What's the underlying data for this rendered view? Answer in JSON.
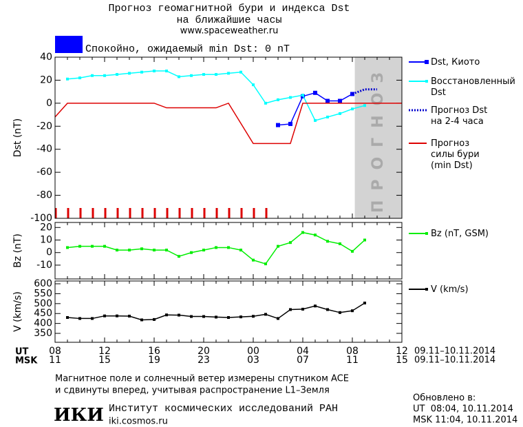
{
  "header": {
    "title": "Прогноз геомагнитной бури и индекса Dst",
    "subtitle": "на ближайшие часы",
    "site": "www.spaceweather.ru"
  },
  "status": {
    "color": "#0000ff",
    "text": "Спокойно, ожидаемый min Dst: 0 nT"
  },
  "time_axis": {
    "xlim": [
      0,
      28
    ],
    "ut_label": "UT",
    "ut_ticks": [
      {
        "value": 0,
        "label": "08"
      },
      {
        "value": 4,
        "label": "12"
      },
      {
        "value": 8,
        "label": "16"
      },
      {
        "value": 12,
        "label": "20"
      },
      {
        "value": 16,
        "label": "00"
      },
      {
        "value": 20,
        "label": "04"
      },
      {
        "value": 24,
        "label": "08"
      },
      {
        "value": 28,
        "label": "12"
      }
    ],
    "ut_range": "09.11–10.11.2014",
    "msk_label": "MSK",
    "msk_ticks": [
      {
        "value": 0,
        "label": "11"
      },
      {
        "value": 4,
        "label": "15"
      },
      {
        "value": 8,
        "label": "19"
      },
      {
        "value": 12,
        "label": "23"
      },
      {
        "value": 16,
        "label": "03"
      },
      {
        "value": 20,
        "label": "07"
      },
      {
        "value": 24,
        "label": "11"
      },
      {
        "value": 28,
        "label": "15"
      }
    ],
    "msk_range": "09.11–10.11.2014"
  },
  "chart_data": [
    {
      "type": "line",
      "ylabel": "Dst (nT)",
      "ylim": [
        -100,
        40
      ],
      "yticks": [
        -100,
        -80,
        -60,
        -40,
        -20,
        0,
        20,
        40
      ],
      "forecast_zone": {
        "label": "ПРОГНОЗ",
        "from": 24.2,
        "to": 28,
        "color": "#d3d3d3"
      },
      "series": [
        {
          "name": "Dst, Киото",
          "color": "#0000ff",
          "style": "solid-marker",
          "x": [
            18,
            19,
            20,
            21,
            22,
            23,
            24
          ],
          "values": [
            -19,
            -18,
            6,
            9,
            2,
            2,
            8
          ]
        },
        {
          "name": "Восстановленный\nDst",
          "color": "#00ffff",
          "style": "solid-small-marker",
          "x": [
            1,
            2,
            3,
            4,
            5,
            6,
            7,
            8,
            9,
            10,
            11,
            12,
            13,
            14,
            15,
            16,
            17,
            18,
            19,
            20,
            21,
            22,
            23,
            24,
            25
          ],
          "values": [
            21,
            22,
            24,
            24,
            25,
            26,
            27,
            28,
            28,
            23,
            24,
            25,
            25,
            26,
            27,
            16,
            0,
            3,
            5,
            7,
            -15,
            -12,
            -9,
            -5,
            -2
          ]
        },
        {
          "name": "Прогноз Dst\nна 2-4 часа",
          "color": "#0000cc",
          "style": "dotted",
          "x": [
            24,
            25,
            26
          ],
          "values": [
            8,
            12,
            12
          ]
        },
        {
          "name": "Прогноз\nсилы бури\n(min Dst)",
          "color": "#dd0000",
          "style": "solid",
          "x": [
            0,
            1,
            8,
            9,
            13,
            14,
            16,
            19,
            20,
            28
          ],
          "values": [
            -12,
            0,
            0,
            -4,
            -4,
            0,
            -35,
            -35,
            0,
            0
          ]
        }
      ]
    },
    {
      "type": "line",
      "ylabel": "Bz (nT)",
      "ylim": [
        -21,
        24
      ],
      "yticks": [
        -10,
        0,
        10,
        20
      ],
      "series": [
        {
          "name": "Bz (nT, GSM)",
          "color": "#00ee00",
          "style": "solid-small-marker",
          "x": [
            1,
            2,
            3,
            4,
            5,
            6,
            7,
            8,
            9,
            10,
            11,
            12,
            13,
            14,
            15,
            16,
            17,
            18,
            19,
            20,
            21,
            22,
            23,
            24,
            25
          ],
          "values": [
            4,
            5,
            5,
            5,
            2,
            2,
            3,
            2,
            2,
            -3,
            0,
            2,
            4,
            4,
            2,
            -6,
            -9,
            5,
            8,
            16,
            14,
            9,
            7,
            1,
            10
          ]
        }
      ]
    },
    {
      "type": "line",
      "ylabel": "V (km/s)",
      "ylim": [
        305,
        614
      ],
      "yticks": [
        350,
        400,
        450,
        500,
        550,
        600
      ],
      "series": [
        {
          "name": "V (km/s)",
          "color": "#000000",
          "style": "solid-small-marker",
          "x": [
            1,
            2,
            3,
            4,
            5,
            6,
            7,
            8,
            9,
            10,
            11,
            12,
            13,
            14,
            15,
            16,
            17,
            18,
            19,
            20,
            21,
            22,
            23,
            24,
            25
          ],
          "values": [
            430,
            425,
            425,
            438,
            438,
            437,
            418,
            420,
            443,
            442,
            435,
            435,
            432,
            430,
            433,
            436,
            446,
            425,
            470,
            472,
            488,
            470,
            455,
            464,
            503
          ]
        }
      ]
    }
  ],
  "footer": {
    "note_line1": "Магнитное поле и солнечный ветер измерены спутником ACE",
    "note_line2": "и сдвинуты вперед, учитывая распространение L1–Земля",
    "logo": "ИКИ",
    "institute": "Институт космических исследований РАН",
    "url": "iki.cosmos.ru",
    "updated_label": "Обновлено в:",
    "updated_ut": "UT  08:04, 10.11.2014",
    "updated_msk": "MSK 11:04, 10.11.2014"
  }
}
